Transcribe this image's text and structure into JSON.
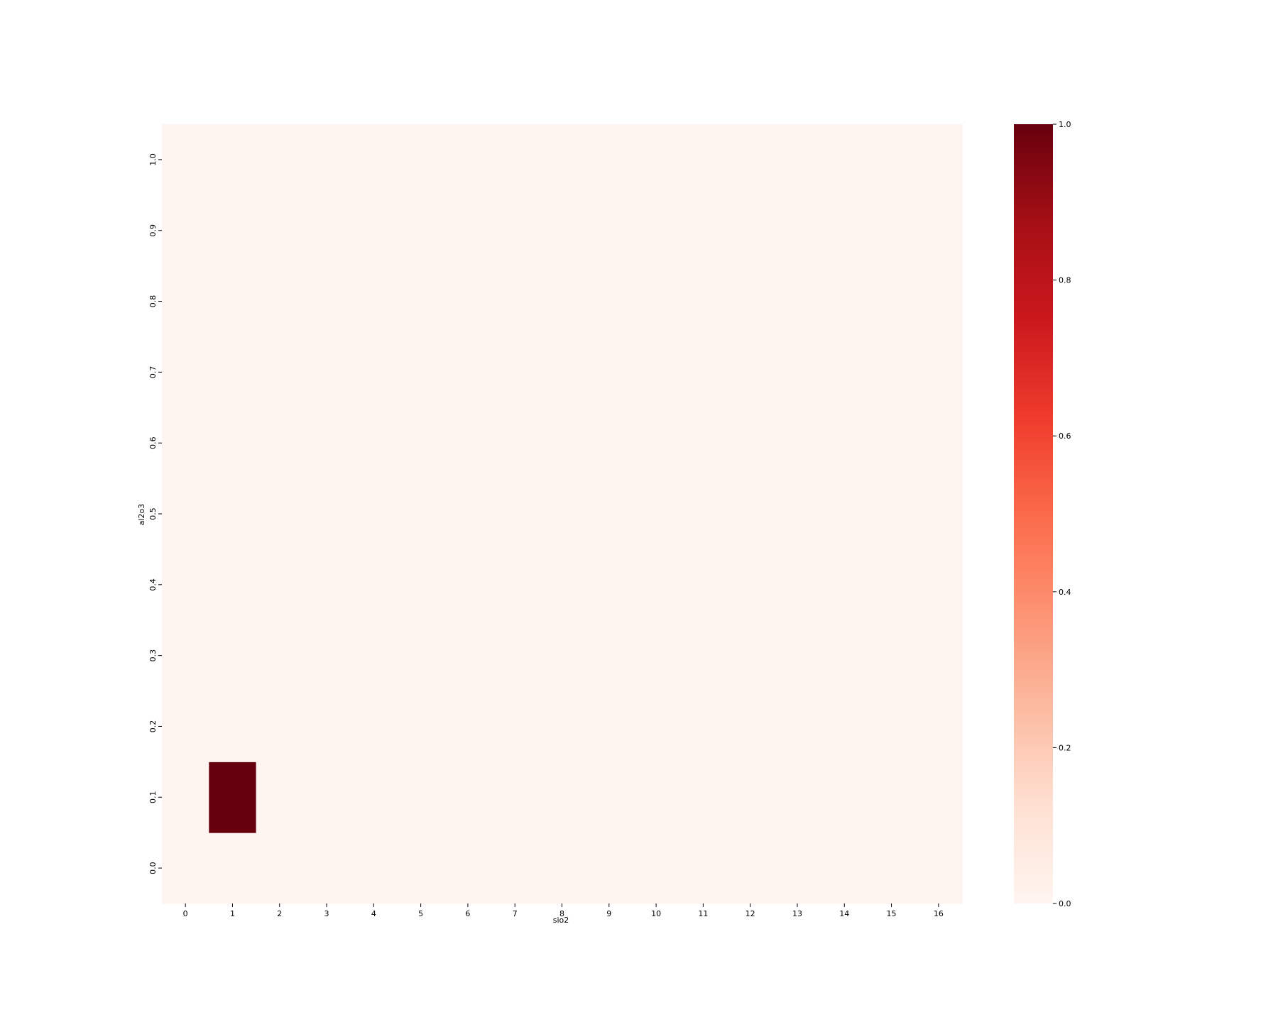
{
  "chart_data": {
    "type": "heatmap",
    "title": "",
    "xlabel": "sio2",
    "ylabel": "al2o3",
    "x_categories": [
      "0",
      "1",
      "2",
      "3",
      "4",
      "5",
      "6",
      "7",
      "8",
      "9",
      "10",
      "11",
      "12",
      "13",
      "14",
      "15",
      "16"
    ],
    "y_categories": [
      "0.0",
      "0.1",
      "0.2",
      "0.3",
      "0.4",
      "0.5",
      "0.6",
      "0.7",
      "0.8",
      "0.9",
      "1.0"
    ],
    "nonzero_cells": [
      {
        "x": "1",
        "y": "0.1",
        "value": 1.0
      }
    ],
    "default_value": 0.0,
    "colormap": "Reds",
    "colorbar": {
      "range": [
        0.0,
        1.0
      ],
      "ticks": [
        "0.0",
        "0.2",
        "0.4",
        "0.6",
        "0.8",
        "1.0"
      ],
      "placement": "right"
    },
    "colors": {
      "low": "#fff5f0",
      "high": "#67000d"
    },
    "grid": false,
    "legend": "none"
  }
}
